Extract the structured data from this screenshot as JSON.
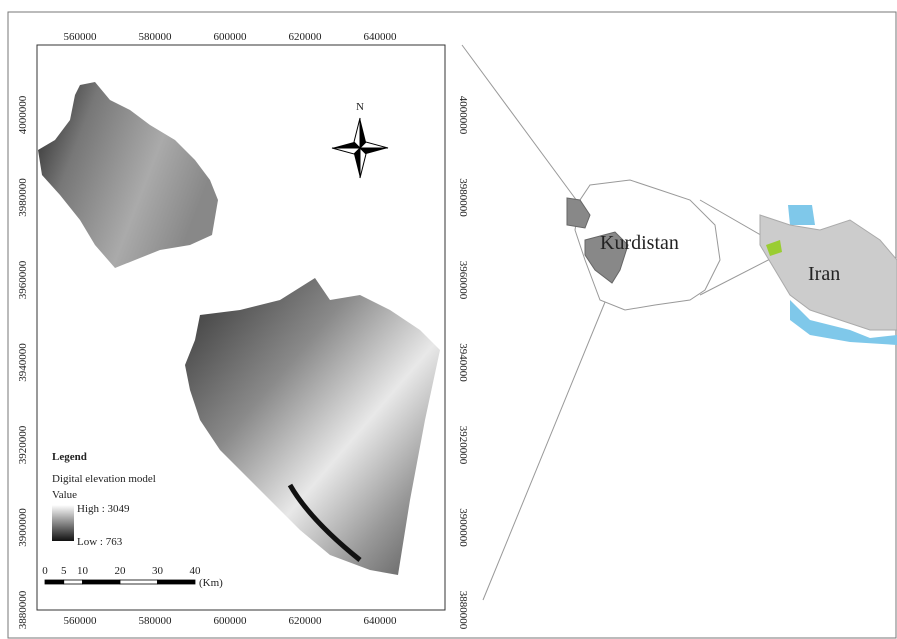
{
  "map": {
    "x_labels_top": [
      "560000",
      "580000",
      "600000",
      "620000",
      "640000"
    ],
    "x_labels_bottom": [
      "560000",
      "580000",
      "600000",
      "620000",
      "640000"
    ],
    "y_labels_left": [
      "4000000",
      "3980000",
      "3960000",
      "3940000",
      "3920000",
      "3900000",
      "3880000"
    ],
    "y_labels_right": [
      "4000000",
      "3980000",
      "3960000",
      "3940000",
      "3920000",
      "3900000",
      "3880000"
    ],
    "north": "N",
    "legend": {
      "title": "Legend",
      "layer": "Digital elevation model",
      "field": "Value",
      "high": "High : 3049",
      "low": "Low : 763"
    },
    "scale_bar": {
      "ticks": [
        0,
        5,
        10,
        20,
        30,
        40
      ],
      "unit": "(Km)"
    },
    "inset": {
      "province": "Kurdistan",
      "country": "Iran"
    }
  }
}
